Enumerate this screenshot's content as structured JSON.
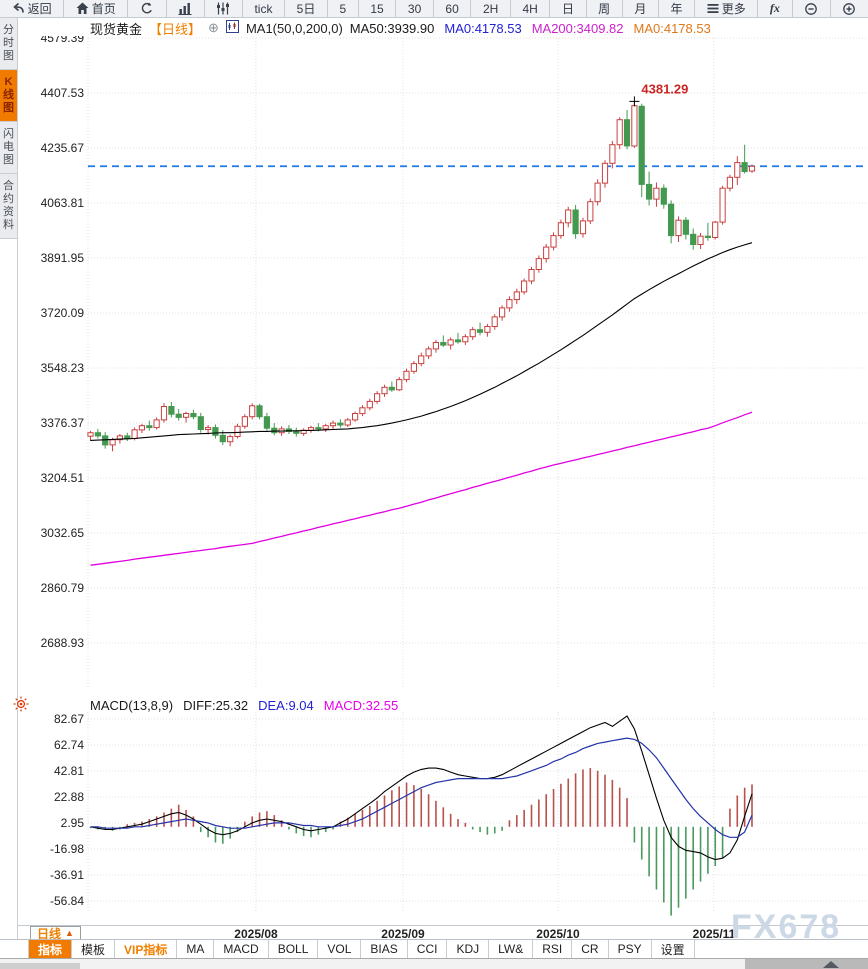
{
  "toolbar": {
    "items": [
      {
        "name": "back",
        "icon": "back-arrow-icon",
        "label": "返回"
      },
      {
        "name": "home",
        "icon": "home-icon",
        "label": "首页"
      },
      {
        "name": "refresh",
        "icon": "refresh-icon",
        "label": ""
      },
      {
        "name": "bar-chart",
        "icon": "bar-chart-icon",
        "label": ""
      },
      {
        "name": "candlestick",
        "icon": "candlestick-icon",
        "label": ""
      },
      {
        "name": "tick",
        "icon": "",
        "label": "tick"
      },
      {
        "name": "5d",
        "icon": "",
        "label": "5日"
      },
      {
        "name": "5m",
        "icon": "",
        "label": "5"
      },
      {
        "name": "15m",
        "icon": "",
        "label": "15"
      },
      {
        "name": "30m",
        "icon": "",
        "label": "30"
      },
      {
        "name": "60m",
        "icon": "",
        "label": "60"
      },
      {
        "name": "2h",
        "icon": "",
        "label": "2H"
      },
      {
        "name": "4h",
        "icon": "",
        "label": "4H"
      },
      {
        "name": "day",
        "icon": "",
        "label": "日"
      },
      {
        "name": "week",
        "icon": "",
        "label": "周"
      },
      {
        "name": "month",
        "icon": "",
        "label": "月"
      },
      {
        "name": "year",
        "icon": "",
        "label": "年"
      },
      {
        "name": "more",
        "icon": "menu-icon",
        "label": "更多"
      },
      {
        "name": "fx",
        "icon": "",
        "label": "fx"
      },
      {
        "name": "zoom-out",
        "icon": "zoom-out-icon",
        "label": ""
      },
      {
        "name": "zoom-in",
        "icon": "zoom-in-icon",
        "label": ""
      }
    ]
  },
  "sidebar": {
    "items": [
      {
        "name": "time-chart",
        "label": "分时图",
        "active": false
      },
      {
        "name": "kline-chart",
        "label": "K线图",
        "active": true
      },
      {
        "name": "lightning-chart",
        "label": "闪电图",
        "active": false
      },
      {
        "name": "contract-info",
        "label": "合约资料",
        "active": false
      }
    ]
  },
  "legend": {
    "symbol": "现货黄金",
    "period_tag": "【日线】",
    "ma_formula": "MA1(50,0,200,0)",
    "items": [
      {
        "label": "MA50:3939.90",
        "color": "#1a1a1a"
      },
      {
        "label": "MA0:4178.53",
        "color": "#2222d4"
      },
      {
        "label": "MA200:3409.82",
        "color": "#cc22cc"
      },
      {
        "label": "MA0:4178.53",
        "color": "#e07818"
      }
    ]
  },
  "macd_header": {
    "formula": "MACD(13,8,9)",
    "items": [
      {
        "label": "DIFF:25.32",
        "color": "#1a1a1a"
      },
      {
        "label": "DEA:9.04",
        "color": "#2222d4"
      },
      {
        "label": "MACD:32.55",
        "color": "#e800e8"
      }
    ]
  },
  "xaxis": {
    "period_button": "日线",
    "dates": [
      "2025/08",
      "2025/09",
      "2025/10",
      "2025/11"
    ]
  },
  "bottom_tabs": [
    {
      "name": "indicator",
      "label": "指标",
      "active": true,
      "vip": false
    },
    {
      "name": "template",
      "label": "模板",
      "active": false,
      "vip": false
    },
    {
      "name": "vip-indicator",
      "label": "VIP指标",
      "active": false,
      "vip": true
    },
    {
      "name": "ma",
      "label": "MA",
      "active": false,
      "vip": false
    },
    {
      "name": "macd",
      "label": "MACD",
      "active": false,
      "vip": false
    },
    {
      "name": "boll",
      "label": "BOLL",
      "active": false,
      "vip": false
    },
    {
      "name": "vol",
      "label": "VOL",
      "active": false,
      "vip": false
    },
    {
      "name": "bias",
      "label": "BIAS",
      "active": false,
      "vip": false
    },
    {
      "name": "cci",
      "label": "CCI",
      "active": false,
      "vip": false
    },
    {
      "name": "kdj",
      "label": "KDJ",
      "active": false,
      "vip": false
    },
    {
      "name": "lwr",
      "label": "LW&",
      "active": false,
      "vip": false
    },
    {
      "name": "rsi",
      "label": "RSI",
      "active": false,
      "vip": false
    },
    {
      "name": "cr",
      "label": "CR",
      "active": false,
      "vip": false
    },
    {
      "name": "psy",
      "label": "PSY",
      "active": false,
      "vip": false
    },
    {
      "name": "settings",
      "label": "设置",
      "active": false,
      "vip": false
    }
  ],
  "watermark": "FX678",
  "chart_data": {
    "type": "candlestick",
    "title": "现货黄金 日线",
    "y_ticks": [
      4579.39,
      4407.53,
      4235.67,
      4063.81,
      3891.95,
      3720.09,
      3548.23,
      3376.37,
      3204.51,
      3032.65,
      2860.79,
      2688.93
    ],
    "x_tick_labels": [
      "2025/08",
      "2025/09",
      "2025/10",
      "2025/11"
    ],
    "x_tick_candle_index": [
      22.5,
      42.5,
      63.6,
      84.8
    ],
    "last_price": 4178.53,
    "high_label": {
      "value": 4381.29,
      "candle_index": 74
    },
    "colors": {
      "up": "#c94040",
      "down": "#43994f",
      "ma50": "#000000",
      "ma200": "#e100e1",
      "last_price_line": "#1e78e8",
      "diff": "#000000",
      "dea": "#2433a8",
      "bar_up": "#b8514c",
      "bar_down": "#4a9a5f"
    },
    "candles": [
      [
        3335,
        3352,
        3320,
        3346
      ],
      [
        3346,
        3358,
        3328,
        3336
      ],
      [
        3336,
        3348,
        3296,
        3308
      ],
      [
        3308,
        3330,
        3288,
        3324
      ],
      [
        3324,
        3342,
        3312,
        3336
      ],
      [
        3336,
        3346,
        3320,
        3328
      ],
      [
        3328,
        3362,
        3322,
        3355
      ],
      [
        3355,
        3374,
        3345,
        3368
      ],
      [
        3368,
        3384,
        3352,
        3362
      ],
      [
        3362,
        3394,
        3356,
        3386
      ],
      [
        3386,
        3438,
        3378,
        3428
      ],
      [
        3428,
        3442,
        3394,
        3404
      ],
      [
        3404,
        3420,
        3384,
        3394
      ],
      [
        3394,
        3412,
        3378,
        3406
      ],
      [
        3406,
        3418,
        3388,
        3396
      ],
      [
        3396,
        3408,
        3346,
        3356
      ],
      [
        3356,
        3370,
        3340,
        3362
      ],
      [
        3362,
        3372,
        3328,
        3338
      ],
      [
        3338,
        3354,
        3308,
        3318
      ],
      [
        3318,
        3340,
        3304,
        3334
      ],
      [
        3334,
        3374,
        3328,
        3366
      ],
      [
        3366,
        3404,
        3358,
        3396
      ],
      [
        3396,
        3438,
        3388,
        3430
      ],
      [
        3430,
        3436,
        3388,
        3396
      ],
      [
        3396,
        3408,
        3352,
        3360
      ],
      [
        3360,
        3376,
        3338,
        3346
      ],
      [
        3346,
        3366,
        3336,
        3358
      ],
      [
        3358,
        3370,
        3342,
        3350
      ],
      [
        3350,
        3362,
        3334,
        3344
      ],
      [
        3344,
        3360,
        3336,
        3354
      ],
      [
        3354,
        3368,
        3346,
        3362
      ],
      [
        3362,
        3376,
        3350,
        3358
      ],
      [
        3358,
        3374,
        3348,
        3368
      ],
      [
        3368,
        3384,
        3356,
        3376
      ],
      [
        3376,
        3388,
        3362,
        3370
      ],
      [
        3370,
        3392,
        3364,
        3386
      ],
      [
        3386,
        3412,
        3380,
        3406
      ],
      [
        3406,
        3432,
        3398,
        3424
      ],
      [
        3424,
        3452,
        3416,
        3444
      ],
      [
        3444,
        3476,
        3436,
        3468
      ],
      [
        3468,
        3496,
        3458,
        3488
      ],
      [
        3488,
        3506,
        3474,
        3480
      ],
      [
        3480,
        3520,
        3476,
        3512
      ],
      [
        3512,
        3546,
        3504,
        3538
      ],
      [
        3538,
        3570,
        3530,
        3562
      ],
      [
        3562,
        3596,
        3554,
        3586
      ],
      [
        3586,
        3616,
        3576,
        3608
      ],
      [
        3608,
        3636,
        3596,
        3628
      ],
      [
        3628,
        3650,
        3614,
        3620
      ],
      [
        3620,
        3644,
        3606,
        3636
      ],
      [
        3636,
        3658,
        3624,
        3630
      ],
      [
        3630,
        3654,
        3620,
        3646
      ],
      [
        3646,
        3676,
        3636,
        3668
      ],
      [
        3668,
        3690,
        3650,
        3660
      ],
      [
        3660,
        3686,
        3646,
        3678
      ],
      [
        3678,
        3716,
        3668,
        3708
      ],
      [
        3708,
        3744,
        3696,
        3736
      ],
      [
        3736,
        3772,
        3724,
        3762
      ],
      [
        3762,
        3796,
        3748,
        3786
      ],
      [
        3786,
        3828,
        3778,
        3820
      ],
      [
        3820,
        3864,
        3810,
        3856
      ],
      [
        3856,
        3900,
        3846,
        3890
      ],
      [
        3890,
        3936,
        3878,
        3926
      ],
      [
        3926,
        3972,
        3916,
        3962
      ],
      [
        3962,
        4012,
        3952,
        4002
      ],
      [
        4002,
        4052,
        3988,
        4042
      ],
      [
        4042,
        4058,
        3952,
        3968
      ],
      [
        3968,
        4018,
        3956,
        4008
      ],
      [
        4008,
        4078,
        3998,
        4068
      ],
      [
        4068,
        4138,
        4056,
        4126
      ],
      [
        4126,
        4198,
        4112,
        4188
      ],
      [
        4188,
        4258,
        4172,
        4246
      ],
      [
        4246,
        4332,
        4232,
        4324
      ],
      [
        4324,
        4354,
        4232,
        4242
      ],
      [
        4242,
        4381.29,
        4236,
        4368
      ],
      [
        4366,
        4374,
        4082,
        4122
      ],
      [
        4122,
        4162,
        4056,
        4076
      ],
      [
        4076,
        4128,
        4052,
        4110
      ],
      [
        4110,
        4122,
        4046,
        4060
      ],
      [
        4060,
        4072,
        3938,
        3962
      ],
      [
        3962,
        4022,
        3942,
        4010
      ],
      [
        4010,
        4020,
        3950,
        3966
      ],
      [
        3966,
        3984,
        3918,
        3934
      ],
      [
        3934,
        3970,
        3920,
        3960
      ],
      [
        3960,
        4002,
        3946,
        3956
      ],
      [
        3956,
        4008,
        3950,
        4004
      ],
      [
        4004,
        4118,
        3996,
        4110
      ],
      [
        4110,
        4152,
        4100,
        4144
      ],
      [
        4144,
        4210,
        4120,
        4190
      ],
      [
        4190,
        4246,
        4156,
        4162
      ],
      [
        4164,
        4184,
        4158,
        4178.53
      ]
    ],
    "ma50": [
      3322,
      3323,
      3324,
      3325,
      3326,
      3327,
      3328,
      3330,
      3332,
      3334,
      3336,
      3338,
      3340,
      3341,
      3342,
      3343,
      3344,
      3345,
      3346,
      3346,
      3347,
      3348,
      3349,
      3350,
      3350,
      3351,
      3351,
      3352,
      3352,
      3353,
      3353,
      3354,
      3355,
      3356,
      3357,
      3358,
      3360,
      3362,
      3365,
      3368,
      3372,
      3376,
      3381,
      3386,
      3392,
      3398,
      3405,
      3412,
      3420,
      3428,
      3437,
      3446,
      3456,
      3466,
      3477,
      3488,
      3500,
      3512,
      3524,
      3537,
      3550,
      3563,
      3577,
      3591,
      3605,
      3620,
      3635,
      3650,
      3666,
      3682,
      3698,
      3714,
      3731,
      3748,
      3765,
      3779,
      3793,
      3806,
      3819,
      3831,
      3843,
      3855,
      3867,
      3878,
      3889,
      3899,
      3909,
      3918,
      3926,
      3933,
      3939.9
    ],
    "ma200": [
      2932,
      2935,
      2938,
      2941,
      2944,
      2947,
      2951,
      2954,
      2957,
      2960,
      2963,
      2966,
      2969,
      2972,
      2975,
      2978,
      2981,
      2984,
      2988,
      2991,
      2994,
      2997,
      3000,
      3006,
      3011,
      3017,
      3022,
      3028,
      3033,
      3039,
      3044,
      3050,
      3055,
      3061,
      3066,
      3072,
      3077,
      3083,
      3088,
      3094,
      3099,
      3105,
      3110,
      3116,
      3123,
      3129,
      3136,
      3142,
      3149,
      3155,
      3162,
      3168,
      3175,
      3181,
      3188,
      3194,
      3200,
      3207,
      3213,
      3220,
      3226,
      3233,
      3239,
      3245,
      3250,
      3256,
      3261,
      3267,
      3272,
      3278,
      3283,
      3289,
      3294,
      3300,
      3305,
      3311,
      3316,
      3322,
      3327,
      3333,
      3338,
      3344,
      3349,
      3355,
      3360,
      3368,
      3377,
      3385,
      3393,
      3402,
      3409.8
    ],
    "macd": {
      "y_ticks": [
        82.67,
        62.74,
        42.81,
        22.88,
        2.95,
        -16.98,
        -36.91,
        -56.84
      ],
      "bars": [
        -1,
        -2,
        -2,
        -3,
        -2,
        2,
        3,
        4,
        6,
        8,
        11,
        14,
        17,
        13,
        8,
        -4,
        -8,
        -12,
        -13,
        -9,
        -4,
        4,
        8,
        11,
        12,
        9,
        5,
        -2,
        -5,
        -7,
        -8,
        -6,
        -4,
        -2,
        4,
        7,
        10,
        13,
        16,
        20,
        24,
        28,
        31,
        34,
        32,
        29,
        25,
        20,
        15,
        10,
        6,
        3,
        -2,
        -4,
        -6,
        -5,
        -3,
        5,
        9,
        13,
        17,
        21,
        25,
        29,
        33,
        37,
        41,
        44,
        45,
        43,
        40,
        36,
        30,
        22,
        -12,
        -25,
        -38,
        -48,
        -58,
        -68,
        -62,
        -55,
        -48,
        -42,
        -36,
        -30,
        -24,
        14,
        24,
        30,
        32.55
      ],
      "diff": [
        0,
        -1,
        -2,
        -2,
        -1,
        0,
        1,
        2,
        4,
        6,
        8,
        10,
        11,
        9,
        6,
        2,
        -2,
        -5,
        -6,
        -5,
        -3,
        0,
        3,
        5,
        6,
        5,
        4,
        2,
        0,
        -2,
        -3,
        -2,
        -1,
        0,
        3,
        6,
        10,
        14,
        18,
        22,
        27,
        31,
        35,
        39,
        42,
        44,
        45,
        45,
        44,
        42,
        40,
        39,
        38,
        37,
        37,
        38,
        40,
        43,
        46,
        49,
        52,
        55,
        58,
        61,
        64,
        67,
        70,
        73,
        76,
        78,
        80,
        77,
        81,
        85,
        75,
        58,
        40,
        22,
        5,
        -8,
        -15,
        -18,
        -19,
        -20,
        -23,
        -25,
        -24,
        -20,
        -10,
        8,
        25.32
      ],
      "dea": [
        0,
        0,
        -1,
        -1,
        -1,
        -1,
        0,
        0,
        1,
        2,
        3,
        4,
        5,
        6,
        5,
        4,
        3,
        1,
        0,
        -1,
        -1,
        -1,
        0,
        1,
        2,
        3,
        3,
        3,
        2,
        1,
        1,
        0,
        0,
        0,
        1,
        2,
        4,
        6,
        9,
        12,
        15,
        18,
        21,
        24,
        27,
        30,
        32,
        34,
        35,
        36,
        37,
        37,
        37,
        37,
        37,
        37,
        37,
        38,
        39,
        41,
        43,
        45,
        47,
        50,
        52,
        55,
        57,
        60,
        62,
        64,
        65,
        66,
        67,
        68,
        67,
        64,
        59,
        53,
        45,
        37,
        29,
        21,
        14,
        8,
        3,
        -2,
        -6,
        -8,
        -8,
        -4,
        9.04
      ]
    }
  }
}
